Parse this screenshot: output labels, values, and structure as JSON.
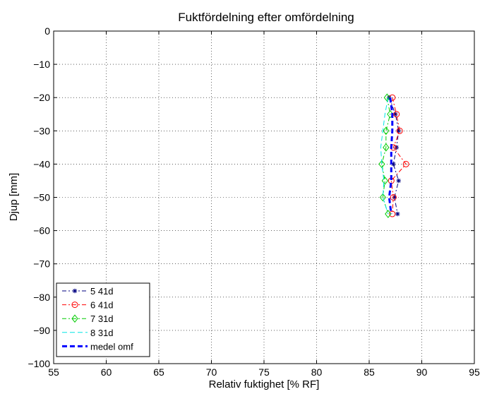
{
  "chart_data": {
    "type": "line",
    "title": "Fuktfördelning efter omfördelning",
    "xlabel": "Relativ fuktighet [% RF]",
    "ylabel": "Djup [mm]",
    "xlim": [
      55,
      95
    ],
    "ylim": [
      -100,
      0
    ],
    "xticks": [
      55,
      60,
      65,
      70,
      75,
      80,
      85,
      90,
      95
    ],
    "yticks": [
      0,
      -10,
      -20,
      -30,
      -40,
      -50,
      -60,
      -70,
      -80,
      -90,
      -100
    ],
    "grid": true,
    "legend_position": "bottom-left",
    "series": [
      {
        "name": "5 41d",
        "color": "#000080",
        "marker": "star",
        "dash": "dashdot",
        "points": [
          [
            86.9,
            -20
          ],
          [
            87.5,
            -25
          ],
          [
            87.8,
            -30
          ],
          [
            87.6,
            -35
          ],
          [
            87.3,
            -40
          ],
          [
            87.8,
            -45
          ],
          [
            87.4,
            -50
          ],
          [
            87.7,
            -55
          ]
        ]
      },
      {
        "name": "6 41d",
        "color": "#ff0000",
        "marker": "circle",
        "dash": "dashdot",
        "points": [
          [
            87.2,
            -20
          ],
          [
            87.6,
            -25
          ],
          [
            87.9,
            -30
          ],
          [
            87.3,
            -35
          ],
          [
            88.5,
            -40
          ],
          [
            87.1,
            -45
          ],
          [
            87.3,
            -50
          ],
          [
            87.2,
            -55
          ]
        ]
      },
      {
        "name": "7 31d",
        "color": "#00cc00",
        "marker": "diamond",
        "dash": "dashdot",
        "points": [
          [
            86.7,
            -20
          ],
          [
            87.0,
            -25
          ],
          [
            86.6,
            -30
          ],
          [
            86.6,
            -35
          ],
          [
            86.2,
            -40
          ],
          [
            86.5,
            -45
          ],
          [
            86.3,
            -50
          ],
          [
            86.8,
            -55
          ]
        ]
      },
      {
        "name": "8 31d",
        "color": "#00e5e5",
        "marker": "none",
        "dash": "dashed",
        "points": [
          [
            86.8,
            -20
          ],
          [
            86.5,
            -25
          ],
          [
            86.3,
            -30
          ],
          [
            86.1,
            -35
          ],
          [
            86.2,
            -40
          ],
          [
            86.4,
            -45
          ],
          [
            86.3,
            -50
          ],
          [
            86.8,
            -55
          ]
        ]
      },
      {
        "name": "medel omf",
        "color": "#0000ff",
        "marker": "none",
        "dash": "thick-dashed",
        "points": [
          [
            87.0,
            -20
          ],
          [
            87.2,
            -25
          ],
          [
            87.2,
            -30
          ],
          [
            87.1,
            -35
          ],
          [
            87.1,
            -40
          ],
          [
            87.1,
            -45
          ],
          [
            86.9,
            -50
          ],
          [
            87.1,
            -55
          ]
        ]
      }
    ]
  }
}
